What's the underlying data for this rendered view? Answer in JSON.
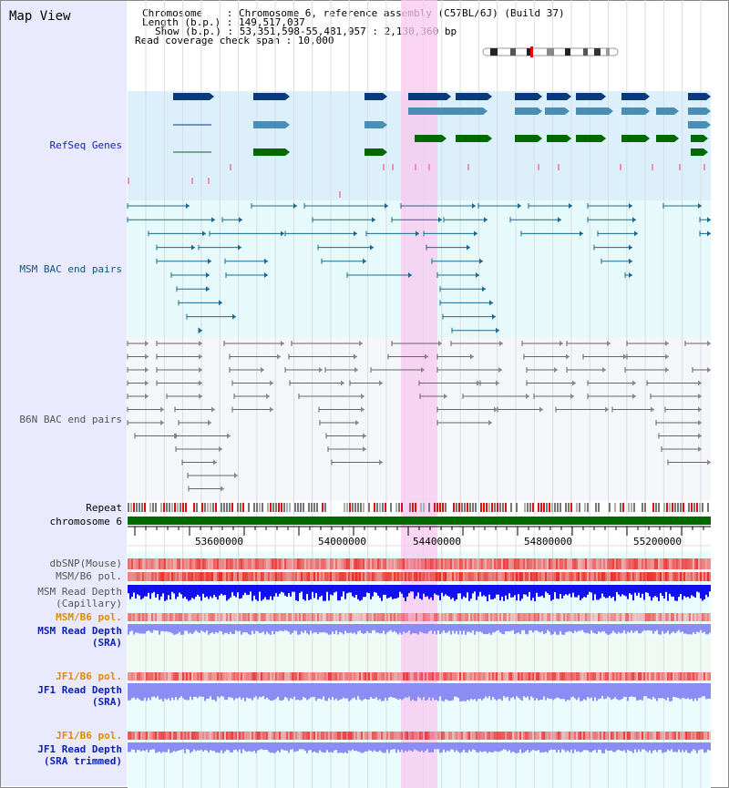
{
  "view_title": "Map View",
  "info": {
    "line1": "Chromosome    : Chromosome 6, reference assembly (C57BL/6J) (Build 37)",
    "line2": "Length (b.p.) : 149,517,037",
    "line3": "Show (b.p.) : 53,351,598-55,481,957 : 2,130,360 bp",
    "line4": "Read coverage check span : 10,000"
  },
  "tracks": {
    "refseq": "RefSeq Genes",
    "msm_bac": "MSM BAC end pairs",
    "b6n_bac": "B6N BAC end pairs",
    "repeat": "Repeat",
    "chromosome": "chromosome 6",
    "dbsnp": "dbSNP(Mouse)",
    "msm_pol": "MSM/B6 pol.",
    "msm_depth_cap_1": "MSM Read Depth",
    "msm_depth_cap_2": "(Capillary)",
    "msm_pol_sra": "MSM/B6 pol.",
    "msm_depth_sra_1": "MSM Read Depth",
    "msm_depth_sra_2": "(SRA)",
    "jf1_pol": "JF1/B6 pol.",
    "jf1_depth_1": "JF1 Read Depth",
    "jf1_depth_2": "(SRA)",
    "jf1_pol_trim": "JF1/B6 pol.",
    "jf1_trim_1": "JF1 Read Depth",
    "jf1_trim_2": "(SRA trimmed)"
  },
  "axis": {
    "ticks": [
      "53600000",
      "54000000",
      "54400000",
      "54800000",
      "55200000"
    ]
  },
  "colors": {
    "gene_navy": "#0b3a7a",
    "gene_blue": "#4a8db5",
    "gene_green": "#006a00",
    "highlight": "#f8c8f0",
    "depth_blue": "#1010f0",
    "depth_light": "#8c8cf5",
    "pol_red": "#f05050"
  }
}
